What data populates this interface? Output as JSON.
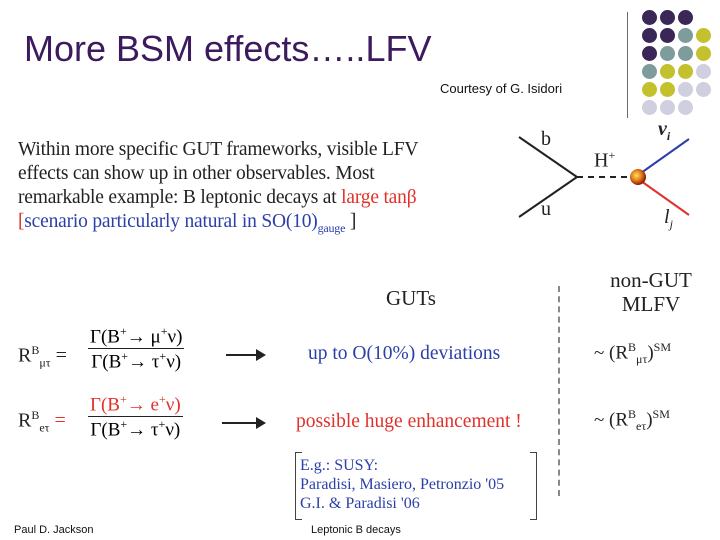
{
  "slide": {
    "title": "More BSM effects…..LFV",
    "courtesy": "Courtesy of G. Isidori"
  },
  "intro": {
    "line1": "Within more specific GUT frameworks, visible LFV",
    "line2": "effects  can  show  up  in  other  observables.  Most",
    "line3_a": "remarkable example: B leptonic decays at ",
    "line3_b": "large tanβ",
    "line4_open": "[",
    "line4_text": "scenario particularly natural in SO(10)",
    "line4_sub": "gauge",
    "line4_close": " ]"
  },
  "diagram": {
    "b": "b",
    "u": "u",
    "H": "H",
    "Hsup": "+",
    "nu": "ν",
    "nu_sub": "i",
    "l": "l",
    "l_sub": "j"
  },
  "headers": {
    "guts": "GUTs",
    "nongut_line1": "non-GUT",
    "nongut_line2": "MLFV"
  },
  "row1": {
    "R": "R",
    "R_sup": "B",
    "R_sub": "μτ",
    "eq": " =",
    "num_a": "Γ(B",
    "num_sup": "+",
    "num_b": "→ μ",
    "num_sup2": "+",
    "num_c": "ν)",
    "den_a": "Γ(B",
    "den_sup": "+",
    "den_b": "→ τ",
    "den_sup2": "+",
    "den_c": "ν)",
    "result": "up to O(10%) deviations",
    "sm_a": "~ (R",
    "sm_sup": "B",
    "sm_sub": "μτ",
    "sm_b": ")",
    "sm_sup2": "SM"
  },
  "row2": {
    "R": "R",
    "R_sup": "B",
    "R_sub": "eτ",
    "eq": " =",
    "num_a": "Γ(B",
    "num_sup": "+",
    "num_b": "→ e",
    "num_sup2": "+",
    "num_c": "ν)",
    "den_a": "Γ(B",
    "den_sup": "+",
    "den_b": "→ τ",
    "den_sup2": "+",
    "den_c": "ν)",
    "result": "possible huge enhancement !",
    "sm_a": "~ (R",
    "sm_sup": "B",
    "sm_sub": "eτ",
    "sm_b": ")",
    "sm_sup2": "SM"
  },
  "references": {
    "line1": "E.g.: SUSY:",
    "line2": "Paradisi, Masiero, Petronzio '05",
    "line3": "G.I. & Paradisi '06"
  },
  "footer": {
    "author": "Paul D. Jackson",
    "topic": "Leptonic B decays"
  },
  "colors": {
    "title": "#3b1a5e",
    "highlight_red": "#e0312a",
    "highlight_blue": "#2b3fa8",
    "dot_purple": "#3b2757",
    "dot_teal": "#7f9c9c",
    "dot_olive": "#c4c12e",
    "dot_lavender": "#cfcfe0"
  }
}
